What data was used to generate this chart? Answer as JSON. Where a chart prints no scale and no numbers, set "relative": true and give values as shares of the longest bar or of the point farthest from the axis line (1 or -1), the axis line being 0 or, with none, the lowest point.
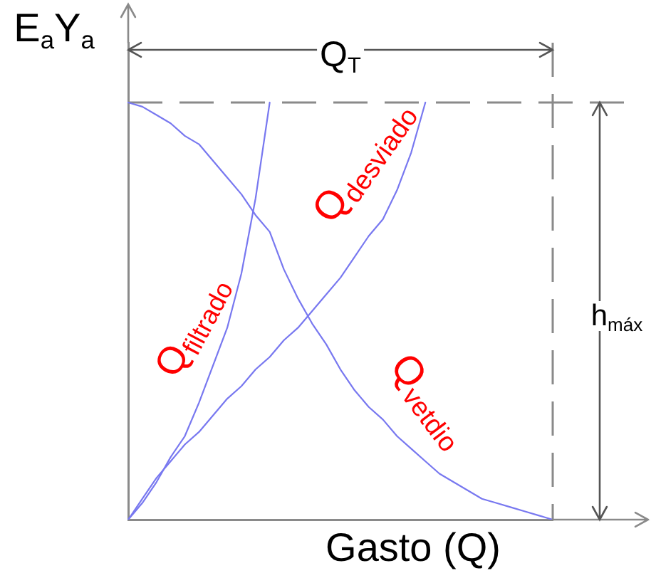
{
  "chart_data": {
    "type": "line",
    "relative": true,
    "xlabel": "Gasto (Q)",
    "ylabel": "E$_{a}$Y$_{a}$",
    "categories": [
      null,
      null,
      null,
      null,
      null,
      null,
      null,
      null,
      null,
      null,
      null,
      null,
      null,
      null,
      null,
      null,
      null,
      null,
      null,
      null,
      null,
      null,
      null,
      null,
      null,
      null,
      null,
      null,
      null,
      null,
      null
    ],
    "series": [
      {
        "name": "Q$_{filtrado}$",
        "color": "#7878f0",
        "values": [
          0,
          0.04,
          0.09,
          0.15,
          0.2,
          0.28,
          0.37,
          0.46,
          0.59,
          0.77,
          1,
          null,
          null,
          null,
          null,
          null,
          null,
          null,
          null,
          null,
          null,
          null,
          null,
          null,
          null,
          null,
          null,
          null,
          null,
          null,
          null
        ]
      },
      {
        "name": "Q$_{desviado}$",
        "color": "#7878f0",
        "values": [
          0,
          0.05,
          0.1,
          0.14,
          0.18,
          0.21,
          0.25,
          0.29,
          0.32,
          0.36,
          0.39,
          0.43,
          0.46,
          0.5,
          0.54,
          0.58,
          0.63,
          0.68,
          0.72,
          0.79,
          0.88,
          1,
          null,
          null,
          null,
          null,
          null,
          null,
          null,
          null,
          null
        ]
      },
      {
        "name": "Q$_{vetdio}$",
        "color": "#7878f0",
        "values": [
          1,
          0.99,
          0.97,
          0.95,
          0.92,
          0.9,
          0.86,
          0.82,
          0.78,
          0.73,
          0.69,
          0.6,
          0.53,
          0.47,
          0.42,
          0.36,
          0.31,
          0.27,
          0.24,
          0.2,
          0.17,
          0.14,
          0.11,
          0.09,
          0.07,
          0.05,
          0.04,
          0.03,
          0.02,
          0.01,
          0
        ]
      }
    ],
    "annotations": [
      "Q$_{T}$",
      "h$_{máx}$"
    ],
    "ref_lines": [
      {
        "axis": "y",
        "value": 1,
        "color": "#8a8a8a",
        "line_style": "dashed"
      }
    ],
    "legend": false,
    "marker": "none",
    "line_style": "solid"
  }
}
